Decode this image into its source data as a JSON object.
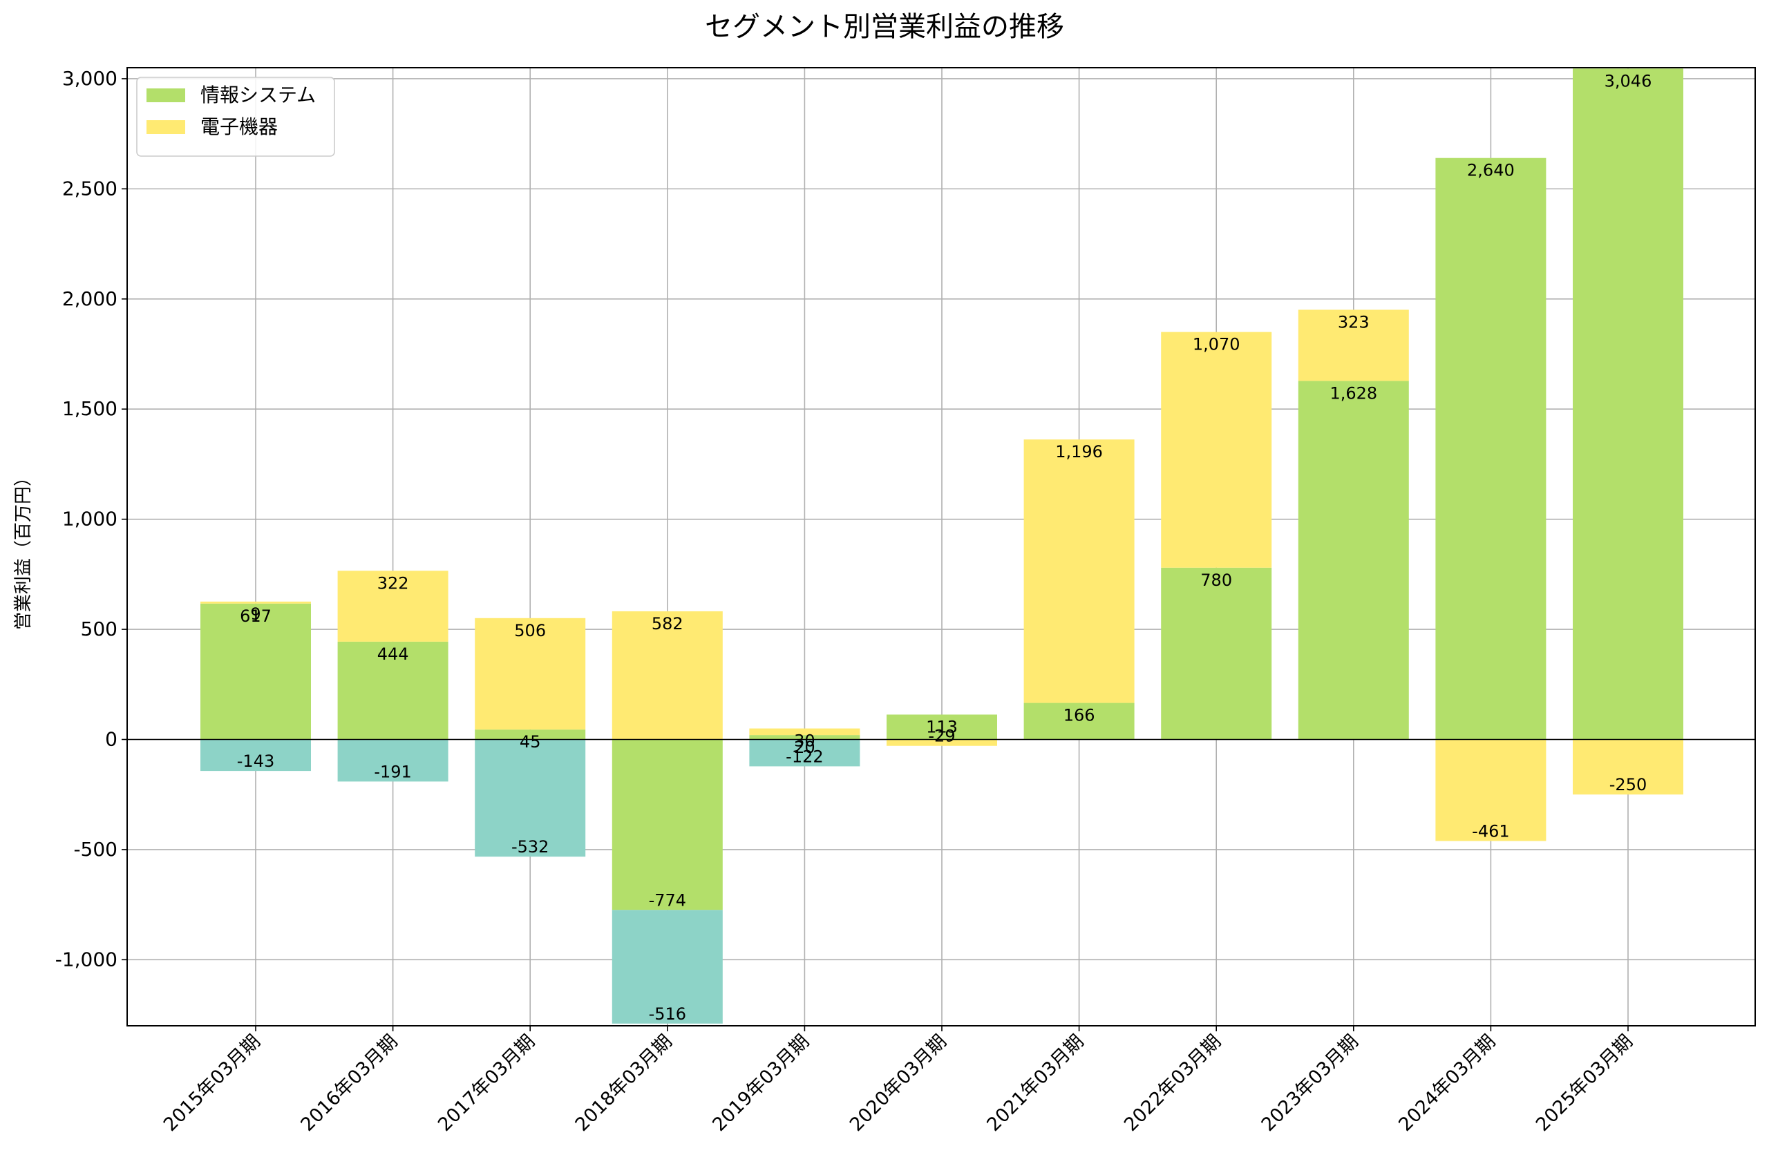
{
  "chart_data": {
    "type": "bar",
    "stacked": true,
    "title": "セグメント別営業利益の推移",
    "xlabel": "",
    "ylabel": "営業利益（百万円）",
    "ylim": [
      -1300,
      3050
    ],
    "yticks": [
      -1000,
      -500,
      0,
      500,
      1000,
      1500,
      2000,
      2500,
      3000
    ],
    "ytick_labels": [
      "-1,000",
      "-500",
      "0",
      "500",
      "1,000",
      "1,500",
      "2,000",
      "2,500",
      "3,000"
    ],
    "grid": true,
    "legend_position": "top-left",
    "categories": [
      "2015年03月期",
      "2016年03月期",
      "2017年03月期",
      "2018年03月期",
      "2019年03月期",
      "2020年03月期",
      "2021年03月期",
      "2022年03月期",
      "2023年03月期",
      "2024年03月期",
      "2025年03月期"
    ],
    "series": [
      {
        "name": "情報システム",
        "color": "#b3df6a",
        "in_legend": true,
        "values": [
          617,
          444,
          45,
          -774,
          20,
          113,
          166,
          780,
          1628,
          2640,
          3046
        ],
        "labels": [
          "617",
          "444",
          "45",
          "-774",
          "20",
          "113",
          "166",
          "780",
          "1,628",
          "2,640",
          "3,046"
        ]
      },
      {
        "name": "電子機器",
        "color": "#ffea72",
        "in_legend": true,
        "values": [
          9,
          322,
          506,
          582,
          30,
          -29,
          1196,
          1070,
          323,
          -461,
          -250
        ],
        "labels": [
          "9",
          "322",
          "506",
          "582",
          "30",
          "-29",
          "1,196",
          "1,070",
          "323",
          "-461",
          "-250"
        ]
      },
      {
        "name": "",
        "color": "#8dd3c7",
        "in_legend": false,
        "values": [
          -143,
          -191,
          -532,
          -516,
          -122,
          null,
          null,
          null,
          null,
          null,
          null
        ],
        "labels": [
          "-143",
          "-191",
          "-532",
          "-516",
          "-122",
          "",
          "",
          "",
          "",
          "",
          ""
        ]
      }
    ]
  }
}
